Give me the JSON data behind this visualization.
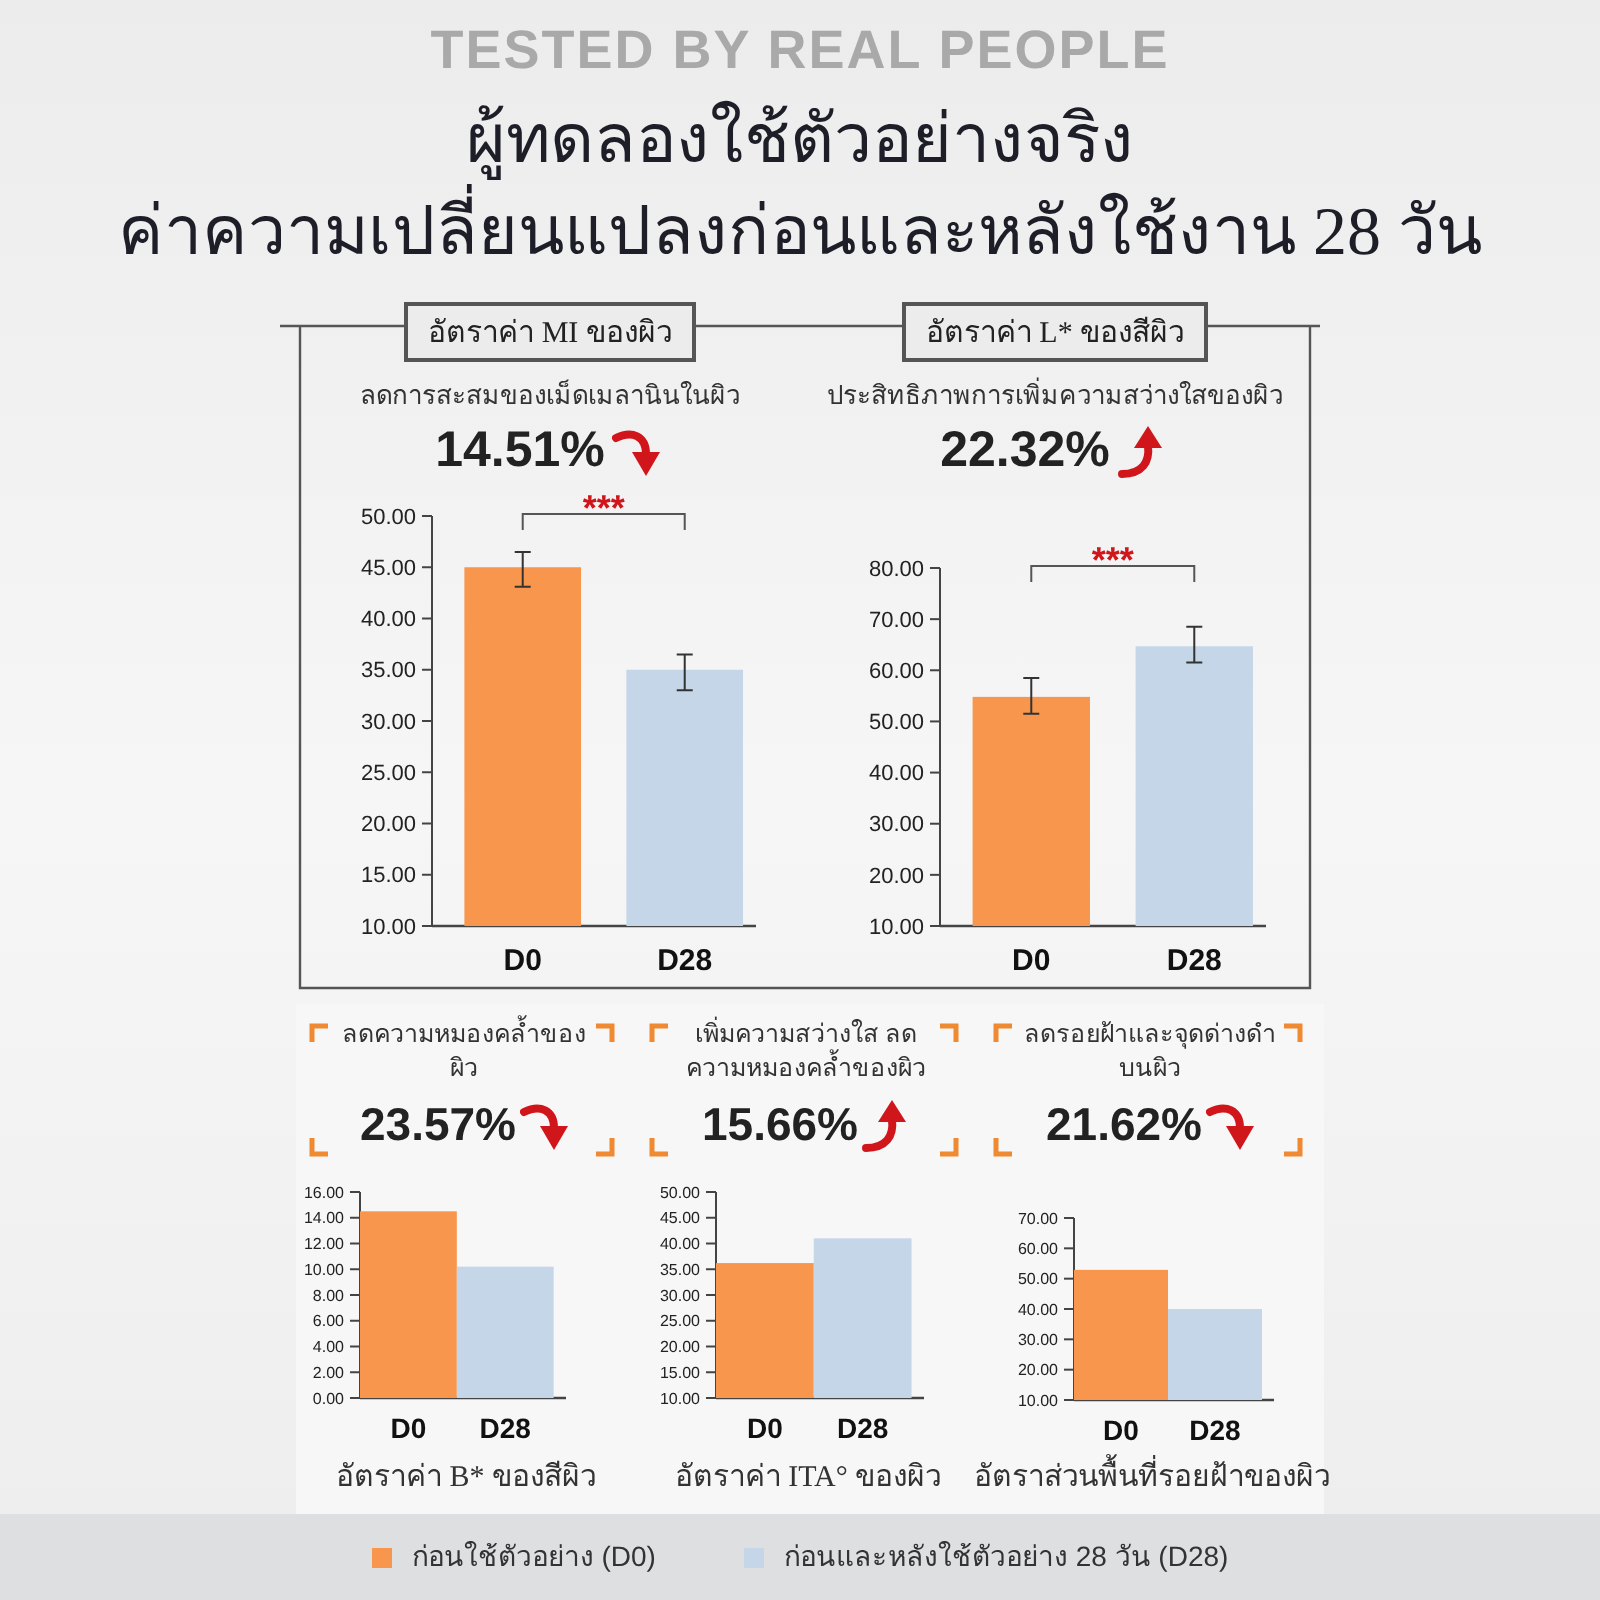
{
  "chart_data": [
    {
      "type": "other",
      "title": "ผู้ทดลองใช้ตัวอย่างจริง",
      "subtitle": "ค่าความเปลี่ยนแปลงก่อนและหลังใช้งาน 28 วัน",
      "annotations": [
        "TESTED BY REAL PEOPLE"
      ]
    },
    {
      "type": "bar",
      "title": "อัตราค่า MI ของผิว",
      "subtitle": "ลดการสะสมของเม็ดเมลานินในผิว",
      "annotations": [
        "14.51%",
        "***"
      ],
      "categories": [
        "D0",
        "D28"
      ],
      "values": [
        45.0,
        35.0
      ],
      "errors": [
        [
          43.1,
          46.5
        ],
        [
          33.0,
          36.5
        ]
      ],
      "colors": [
        "#f7964c",
        "#c5d6e9"
      ],
      "ylim": [
        10,
        50
      ],
      "yticks": [
        {
          "value": 10,
          "label": "10.00"
        },
        {
          "value": 15,
          "label": "15.00"
        },
        {
          "value": 20,
          "label": "20.00"
        },
        {
          "value": 25,
          "label": "25.00"
        },
        {
          "value": 30,
          "label": "30.00"
        },
        {
          "value": 35,
          "label": "35.00"
        },
        {
          "value": 40,
          "label": "40.00"
        },
        {
          "value": 45,
          "label": "45.00"
        },
        {
          "value": 50,
          "label": "50.00"
        }
      ]
    },
    {
      "type": "bar",
      "title": "อัตราค่า L* ของสีผิว",
      "subtitle": "ประสิทธิภาพการเพิ่มความสว่างใสของผิว",
      "annotations": [
        "22.32%",
        "***"
      ],
      "categories": [
        "D0",
        "D28"
      ],
      "values": [
        54.8,
        64.7
      ],
      "errors": [
        [
          51.5,
          58.5
        ],
        [
          61.5,
          68.5
        ]
      ],
      "colors": [
        "#f7964c",
        "#c5d6e9"
      ],
      "ylim": [
        10,
        80
      ],
      "yticks": [
        {
          "value": 10,
          "label": "10.00"
        },
        {
          "value": 20,
          "label": "20.00"
        },
        {
          "value": 30,
          "label": "30.00"
        },
        {
          "value": 40,
          "label": "40.00"
        },
        {
          "value": 50,
          "label": "50.00"
        },
        {
          "value": 60,
          "label": "60.00"
        },
        {
          "value": 70,
          "label": "70.00"
        },
        {
          "value": 80,
          "label": "80.00"
        }
      ]
    },
    {
      "type": "bar",
      "title": "ลดความหมองคล้ำของผิว",
      "xlabel": "อัตราค่า B* ของสีผิว",
      "annotations": [
        "23.57%"
      ],
      "categories": [
        "D0",
        "D28"
      ],
      "values": [
        14.5,
        10.2
      ],
      "colors": [
        "#f7964c",
        "#c5d6e9"
      ],
      "ylim": [
        0,
        16
      ],
      "yticks": [
        {
          "value": 0,
          "label": "0.00"
        },
        {
          "value": 2,
          "label": "2.00"
        },
        {
          "value": 4,
          "label": "4.00"
        },
        {
          "value": 6,
          "label": "6.00"
        },
        {
          "value": 8,
          "label": "8.00"
        },
        {
          "value": 10,
          "label": "10.00"
        },
        {
          "value": 12,
          "label": "12.00"
        },
        {
          "value": 14,
          "label": "14.00"
        },
        {
          "value": 16,
          "label": "16.00"
        }
      ]
    },
    {
      "type": "bar",
      "title": "เพิ่มความสว่างใส ลดความหมองคล้ำของผิว",
      "xlabel": "อัตราค่า ITA° ของผิว",
      "annotations": [
        "15.66%"
      ],
      "categories": [
        "D0",
        "D28"
      ],
      "values": [
        36.2,
        41.0
      ],
      "colors": [
        "#f7964c",
        "#c5d6e9"
      ],
      "ylim": [
        10,
        50
      ],
      "yticks": [
        {
          "value": 10,
          "label": "10.00"
        },
        {
          "value": 15,
          "label": "15.00"
        },
        {
          "value": 20,
          "label": "20.00"
        },
        {
          "value": 25,
          "label": "25.00"
        },
        {
          "value": 30,
          "label": "30.00"
        },
        {
          "value": 35,
          "label": "35.00"
        },
        {
          "value": 40,
          "label": "40.00"
        },
        {
          "value": 45,
          "label": "45.00"
        },
        {
          "value": 50,
          "label": "50.00"
        }
      ]
    },
    {
      "type": "bar",
      "title": "ลดรอยฝ้าและจุดด่างดำบนผิว",
      "xlabel": "อัตราส่วนพื้นที่รอยฝ้าของผิว",
      "annotations": [
        "21.62%"
      ],
      "categories": [
        "D0",
        "D28"
      ],
      "values": [
        52.9,
        40.0
      ],
      "colors": [
        "#f7964c",
        "#c5d6e9"
      ],
      "ylim": [
        10,
        70
      ],
      "yticks": [
        {
          "value": 10,
          "label": "10.00"
        },
        {
          "value": 20,
          "label": "20.00"
        },
        {
          "value": 30,
          "label": "30.00"
        },
        {
          "value": 40,
          "label": "40.00"
        },
        {
          "value": 50,
          "label": "50.00"
        },
        {
          "value": 60,
          "label": "60.00"
        },
        {
          "value": 70,
          "label": "70.00"
        }
      ]
    },
    {
      "type": "other",
      "annotations": [
        "ก่อนใช้ตัวอย่าง (D0)",
        "ก่อนและหลังใช้ตัวอย่าง 28 วัน (D28)"
      ],
      "colors": [
        "#f7964c",
        "#c5d6e9"
      ]
    }
  ]
}
